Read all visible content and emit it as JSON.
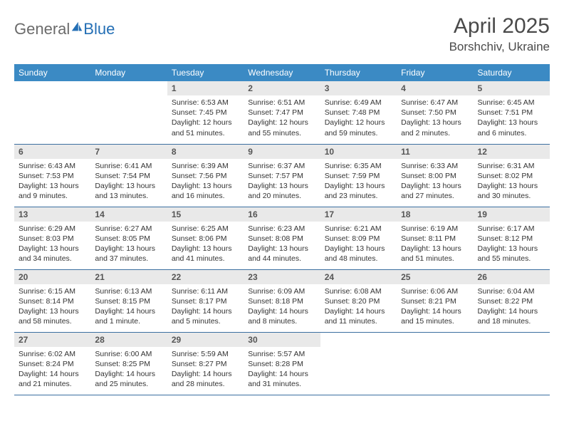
{
  "brand": {
    "general": "General",
    "blue": "Blue"
  },
  "title": "April 2025",
  "location": "Borshchiv, Ukraine",
  "colors": {
    "header_bg": "#3b8ac4",
    "header_text": "#ffffff",
    "daynum_bg": "#e9e9e9",
    "daynum_text": "#555555",
    "border": "#3b6fa0",
    "logo_gray": "#6b6b6b",
    "logo_blue": "#246fb5"
  },
  "weekdays": [
    "Sunday",
    "Monday",
    "Tuesday",
    "Wednesday",
    "Thursday",
    "Friday",
    "Saturday"
  ],
  "weeks": [
    [
      null,
      null,
      {
        "n": "1",
        "sr": "Sunrise: 6:53 AM",
        "ss": "Sunset: 7:45 PM",
        "d1": "Daylight: 12 hours",
        "d2": "and 51 minutes."
      },
      {
        "n": "2",
        "sr": "Sunrise: 6:51 AM",
        "ss": "Sunset: 7:47 PM",
        "d1": "Daylight: 12 hours",
        "d2": "and 55 minutes."
      },
      {
        "n": "3",
        "sr": "Sunrise: 6:49 AM",
        "ss": "Sunset: 7:48 PM",
        "d1": "Daylight: 12 hours",
        "d2": "and 59 minutes."
      },
      {
        "n": "4",
        "sr": "Sunrise: 6:47 AM",
        "ss": "Sunset: 7:50 PM",
        "d1": "Daylight: 13 hours",
        "d2": "and 2 minutes."
      },
      {
        "n": "5",
        "sr": "Sunrise: 6:45 AM",
        "ss": "Sunset: 7:51 PM",
        "d1": "Daylight: 13 hours",
        "d2": "and 6 minutes."
      }
    ],
    [
      {
        "n": "6",
        "sr": "Sunrise: 6:43 AM",
        "ss": "Sunset: 7:53 PM",
        "d1": "Daylight: 13 hours",
        "d2": "and 9 minutes."
      },
      {
        "n": "7",
        "sr": "Sunrise: 6:41 AM",
        "ss": "Sunset: 7:54 PM",
        "d1": "Daylight: 13 hours",
        "d2": "and 13 minutes."
      },
      {
        "n": "8",
        "sr": "Sunrise: 6:39 AM",
        "ss": "Sunset: 7:56 PM",
        "d1": "Daylight: 13 hours",
        "d2": "and 16 minutes."
      },
      {
        "n": "9",
        "sr": "Sunrise: 6:37 AM",
        "ss": "Sunset: 7:57 PM",
        "d1": "Daylight: 13 hours",
        "d2": "and 20 minutes."
      },
      {
        "n": "10",
        "sr": "Sunrise: 6:35 AM",
        "ss": "Sunset: 7:59 PM",
        "d1": "Daylight: 13 hours",
        "d2": "and 23 minutes."
      },
      {
        "n": "11",
        "sr": "Sunrise: 6:33 AM",
        "ss": "Sunset: 8:00 PM",
        "d1": "Daylight: 13 hours",
        "d2": "and 27 minutes."
      },
      {
        "n": "12",
        "sr": "Sunrise: 6:31 AM",
        "ss": "Sunset: 8:02 PM",
        "d1": "Daylight: 13 hours",
        "d2": "and 30 minutes."
      }
    ],
    [
      {
        "n": "13",
        "sr": "Sunrise: 6:29 AM",
        "ss": "Sunset: 8:03 PM",
        "d1": "Daylight: 13 hours",
        "d2": "and 34 minutes."
      },
      {
        "n": "14",
        "sr": "Sunrise: 6:27 AM",
        "ss": "Sunset: 8:05 PM",
        "d1": "Daylight: 13 hours",
        "d2": "and 37 minutes."
      },
      {
        "n": "15",
        "sr": "Sunrise: 6:25 AM",
        "ss": "Sunset: 8:06 PM",
        "d1": "Daylight: 13 hours",
        "d2": "and 41 minutes."
      },
      {
        "n": "16",
        "sr": "Sunrise: 6:23 AM",
        "ss": "Sunset: 8:08 PM",
        "d1": "Daylight: 13 hours",
        "d2": "and 44 minutes."
      },
      {
        "n": "17",
        "sr": "Sunrise: 6:21 AM",
        "ss": "Sunset: 8:09 PM",
        "d1": "Daylight: 13 hours",
        "d2": "and 48 minutes."
      },
      {
        "n": "18",
        "sr": "Sunrise: 6:19 AM",
        "ss": "Sunset: 8:11 PM",
        "d1": "Daylight: 13 hours",
        "d2": "and 51 minutes."
      },
      {
        "n": "19",
        "sr": "Sunrise: 6:17 AM",
        "ss": "Sunset: 8:12 PM",
        "d1": "Daylight: 13 hours",
        "d2": "and 55 minutes."
      }
    ],
    [
      {
        "n": "20",
        "sr": "Sunrise: 6:15 AM",
        "ss": "Sunset: 8:14 PM",
        "d1": "Daylight: 13 hours",
        "d2": "and 58 minutes."
      },
      {
        "n": "21",
        "sr": "Sunrise: 6:13 AM",
        "ss": "Sunset: 8:15 PM",
        "d1": "Daylight: 14 hours",
        "d2": "and 1 minute."
      },
      {
        "n": "22",
        "sr": "Sunrise: 6:11 AM",
        "ss": "Sunset: 8:17 PM",
        "d1": "Daylight: 14 hours",
        "d2": "and 5 minutes."
      },
      {
        "n": "23",
        "sr": "Sunrise: 6:09 AM",
        "ss": "Sunset: 8:18 PM",
        "d1": "Daylight: 14 hours",
        "d2": "and 8 minutes."
      },
      {
        "n": "24",
        "sr": "Sunrise: 6:08 AM",
        "ss": "Sunset: 8:20 PM",
        "d1": "Daylight: 14 hours",
        "d2": "and 11 minutes."
      },
      {
        "n": "25",
        "sr": "Sunrise: 6:06 AM",
        "ss": "Sunset: 8:21 PM",
        "d1": "Daylight: 14 hours",
        "d2": "and 15 minutes."
      },
      {
        "n": "26",
        "sr": "Sunrise: 6:04 AM",
        "ss": "Sunset: 8:22 PM",
        "d1": "Daylight: 14 hours",
        "d2": "and 18 minutes."
      }
    ],
    [
      {
        "n": "27",
        "sr": "Sunrise: 6:02 AM",
        "ss": "Sunset: 8:24 PM",
        "d1": "Daylight: 14 hours",
        "d2": "and 21 minutes."
      },
      {
        "n": "28",
        "sr": "Sunrise: 6:00 AM",
        "ss": "Sunset: 8:25 PM",
        "d1": "Daylight: 14 hours",
        "d2": "and 25 minutes."
      },
      {
        "n": "29",
        "sr": "Sunrise: 5:59 AM",
        "ss": "Sunset: 8:27 PM",
        "d1": "Daylight: 14 hours",
        "d2": "and 28 minutes."
      },
      {
        "n": "30",
        "sr": "Sunrise: 5:57 AM",
        "ss": "Sunset: 8:28 PM",
        "d1": "Daylight: 14 hours",
        "d2": "and 31 minutes."
      },
      null,
      null,
      null
    ]
  ]
}
